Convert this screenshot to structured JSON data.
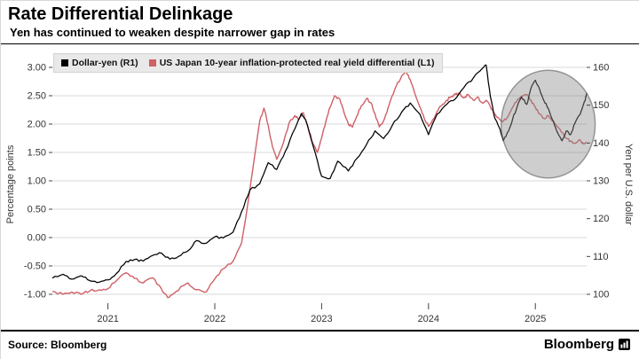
{
  "header": {
    "title": "Rate Differential Delinkage",
    "subtitle": "Yen has continued to weaken despite narrower gap in rates"
  },
  "footer": {
    "source": "Source: Bloomberg",
    "brand": "Bloomberg"
  },
  "chart_data": {
    "type": "line",
    "title": "Rate Differential Delinkage",
    "subtitle": "Yen has continued to weaken despite narrower gap in rates",
    "grid": "horizontal",
    "legend_position": "top-left",
    "x_axis": {
      "range": [
        2020.48,
        2025.48
      ],
      "tick_values": [
        2021,
        2022,
        2023,
        2024,
        2025
      ],
      "tick_labels": [
        "2021",
        "2022",
        "2023",
        "2024",
        "2025"
      ]
    },
    "left_axis": {
      "title": "Percentage points",
      "range": [
        -1.0,
        3.0
      ],
      "tick_values": [
        3.0,
        2.5,
        2.0,
        1.5,
        1.0,
        0.5,
        0.0,
        -0.5,
        -1.0
      ],
      "tick_labels": [
        "3.00",
        "2.50",
        "2.00",
        "1.50",
        "1.00",
        "0.50",
        "0.00",
        "-0.50",
        "-1.00"
      ]
    },
    "right_axis": {
      "title": "Yen per U.S. dollar",
      "range": [
        100,
        160
      ],
      "tick_values": [
        160,
        150,
        140,
        130,
        120,
        110,
        100
      ],
      "tick_labels": [
        "160",
        "150",
        "140",
        "130",
        "120",
        "110",
        "100"
      ]
    },
    "series": [
      {
        "name": "Dollar-yen (R1)",
        "axis": "right",
        "color": "#000000",
        "points": [
          [
            2020.48,
            104.3
          ],
          [
            2020.58,
            105.3
          ],
          [
            2020.66,
            104.0
          ],
          [
            2020.75,
            104.9
          ],
          [
            2020.83,
            103.6
          ],
          [
            2020.92,
            103.2
          ],
          [
            2021.0,
            103.8
          ],
          [
            2021.08,
            105.5
          ],
          [
            2021.17,
            108.7
          ],
          [
            2021.25,
            109.2
          ],
          [
            2021.33,
            108.8
          ],
          [
            2021.42,
            110.3
          ],
          [
            2021.5,
            110.9
          ],
          [
            2021.58,
            109.3
          ],
          [
            2021.66,
            110.0
          ],
          [
            2021.75,
            111.5
          ],
          [
            2021.83,
            114.2
          ],
          [
            2021.92,
            113.5
          ],
          [
            2022.0,
            115.2
          ],
          [
            2022.08,
            114.9
          ],
          [
            2022.17,
            116.4
          ],
          [
            2022.25,
            121.8
          ],
          [
            2022.33,
            127.6
          ],
          [
            2022.42,
            129.2
          ],
          [
            2022.5,
            134.8
          ],
          [
            2022.58,
            133.0
          ],
          [
            2022.66,
            137.8
          ],
          [
            2022.75,
            143.8
          ],
          [
            2022.81,
            147.8
          ],
          [
            2022.85,
            146.2
          ],
          [
            2022.92,
            139.2
          ],
          [
            2023.0,
            131.2
          ],
          [
            2023.08,
            130.6
          ],
          [
            2023.15,
            135.2
          ],
          [
            2023.25,
            132.6
          ],
          [
            2023.33,
            135.9
          ],
          [
            2023.42,
            139.6
          ],
          [
            2023.5,
            143.2
          ],
          [
            2023.58,
            141.2
          ],
          [
            2023.66,
            144.6
          ],
          [
            2023.75,
            148.2
          ],
          [
            2023.83,
            150.6
          ],
          [
            2023.92,
            147.6
          ],
          [
            2024.0,
            142.2
          ],
          [
            2024.08,
            147.6
          ],
          [
            2024.17,
            150.2
          ],
          [
            2024.25,
            151.6
          ],
          [
            2024.33,
            154.6
          ],
          [
            2024.42,
            157.2
          ],
          [
            2024.5,
            159.6
          ],
          [
            2024.54,
            160.6
          ],
          [
            2024.58,
            152.2
          ],
          [
            2024.62,
            146.6
          ],
          [
            2024.66,
            144.2
          ],
          [
            2024.7,
            140.6
          ],
          [
            2024.75,
            143.2
          ],
          [
            2024.79,
            146.6
          ],
          [
            2024.83,
            149.6
          ],
          [
            2024.87,
            152.2
          ],
          [
            2024.92,
            150.2
          ],
          [
            2024.96,
            154.6
          ],
          [
            2025.0,
            156.6
          ],
          [
            2025.04,
            154.2
          ],
          [
            2025.08,
            151.2
          ],
          [
            2025.12,
            149.2
          ],
          [
            2025.17,
            145.6
          ],
          [
            2025.21,
            142.6
          ],
          [
            2025.25,
            140.6
          ],
          [
            2025.29,
            143.2
          ],
          [
            2025.33,
            142.2
          ],
          [
            2025.37,
            145.2
          ],
          [
            2025.42,
            147.6
          ],
          [
            2025.45,
            150.2
          ],
          [
            2025.47,
            151.8
          ],
          [
            2025.48,
            153.2
          ]
        ]
      },
      {
        "name": "US Japan 10-year inflation-protected real yield differential (L1)",
        "axis": "left",
        "color": "#cf6066",
        "points": [
          [
            2020.48,
            -0.95
          ],
          [
            2020.58,
            -1.0
          ],
          [
            2020.66,
            -0.96
          ],
          [
            2020.75,
            -1.0
          ],
          [
            2020.83,
            -0.94
          ],
          [
            2020.92,
            -0.92
          ],
          [
            2021.0,
            -0.9
          ],
          [
            2021.08,
            -0.76
          ],
          [
            2021.17,
            -0.62
          ],
          [
            2021.25,
            -0.72
          ],
          [
            2021.33,
            -0.8
          ],
          [
            2021.42,
            -0.71
          ],
          [
            2021.5,
            -0.9
          ],
          [
            2021.56,
            -1.06
          ],
          [
            2021.62,
            -0.98
          ],
          [
            2021.7,
            -0.85
          ],
          [
            2021.75,
            -0.8
          ],
          [
            2021.83,
            -0.92
          ],
          [
            2021.92,
            -0.96
          ],
          [
            2022.0,
            -0.73
          ],
          [
            2022.08,
            -0.55
          ],
          [
            2022.17,
            -0.42
          ],
          [
            2022.25,
            -0.1
          ],
          [
            2022.31,
            0.6
          ],
          [
            2022.37,
            1.4
          ],
          [
            2022.42,
            2.05
          ],
          [
            2022.46,
            2.28
          ],
          [
            2022.5,
            1.98
          ],
          [
            2022.54,
            1.6
          ],
          [
            2022.58,
            1.38
          ],
          [
            2022.62,
            1.56
          ],
          [
            2022.66,
            1.8
          ],
          [
            2022.7,
            2.04
          ],
          [
            2022.75,
            2.15
          ],
          [
            2022.79,
            2.1
          ],
          [
            2022.83,
            2.2
          ],
          [
            2022.87,
            1.95
          ],
          [
            2022.92,
            1.65
          ],
          [
            2022.96,
            1.5
          ],
          [
            2023.0,
            1.76
          ],
          [
            2023.04,
            2.05
          ],
          [
            2023.08,
            2.3
          ],
          [
            2023.12,
            2.5
          ],
          [
            2023.17,
            2.44
          ],
          [
            2023.21,
            2.2
          ],
          [
            2023.25,
            2.0
          ],
          [
            2023.29,
            1.95
          ],
          [
            2023.33,
            2.14
          ],
          [
            2023.37,
            2.32
          ],
          [
            2023.42,
            2.45
          ],
          [
            2023.46,
            2.38
          ],
          [
            2023.5,
            2.18
          ],
          [
            2023.54,
            1.95
          ],
          [
            2023.58,
            2.06
          ],
          [
            2023.62,
            2.28
          ],
          [
            2023.66,
            2.5
          ],
          [
            2023.7,
            2.68
          ],
          [
            2023.75,
            2.85
          ],
          [
            2023.79,
            2.92
          ],
          [
            2023.83,
            2.78
          ],
          [
            2023.87,
            2.55
          ],
          [
            2023.92,
            2.3
          ],
          [
            2023.96,
            2.1
          ],
          [
            2024.0,
            1.96
          ],
          [
            2024.04,
            2.08
          ],
          [
            2024.08,
            2.22
          ],
          [
            2024.12,
            2.32
          ],
          [
            2024.17,
            2.42
          ],
          [
            2024.21,
            2.48
          ],
          [
            2024.25,
            2.52
          ],
          [
            2024.29,
            2.55
          ],
          [
            2024.33,
            2.46
          ],
          [
            2024.37,
            2.52
          ],
          [
            2024.42,
            2.42
          ],
          [
            2024.46,
            2.48
          ],
          [
            2024.5,
            2.38
          ],
          [
            2024.54,
            2.42
          ],
          [
            2024.58,
            2.3
          ],
          [
            2024.62,
            2.18
          ],
          [
            2024.66,
            2.1
          ],
          [
            2024.7,
            2.05
          ],
          [
            2024.75,
            2.15
          ],
          [
            2024.79,
            2.3
          ],
          [
            2024.83,
            2.42
          ],
          [
            2024.87,
            2.48
          ],
          [
            2024.92,
            2.52
          ],
          [
            2024.96,
            2.42
          ],
          [
            2025.0,
            2.3
          ],
          [
            2025.04,
            2.18
          ],
          [
            2025.08,
            2.1
          ],
          [
            2025.12,
            2.15
          ],
          [
            2025.17,
            2.05
          ],
          [
            2025.21,
            1.95
          ],
          [
            2025.25,
            1.85
          ],
          [
            2025.29,
            1.75
          ],
          [
            2025.33,
            1.7
          ],
          [
            2025.37,
            1.66
          ],
          [
            2025.42,
            1.72
          ],
          [
            2025.45,
            1.65
          ],
          [
            2025.48,
            1.68
          ]
        ]
      }
    ],
    "annotations": [
      {
        "type": "ellipse-highlight",
        "x_center": 2025.12,
        "y_center_left_scale": 2.0,
        "x_radius_years": 0.44,
        "y_radius_left_scale": 0.95,
        "fill": "#8a8a8a",
        "opacity": 0.42,
        "stroke": "#5f5f5f"
      }
    ]
  }
}
